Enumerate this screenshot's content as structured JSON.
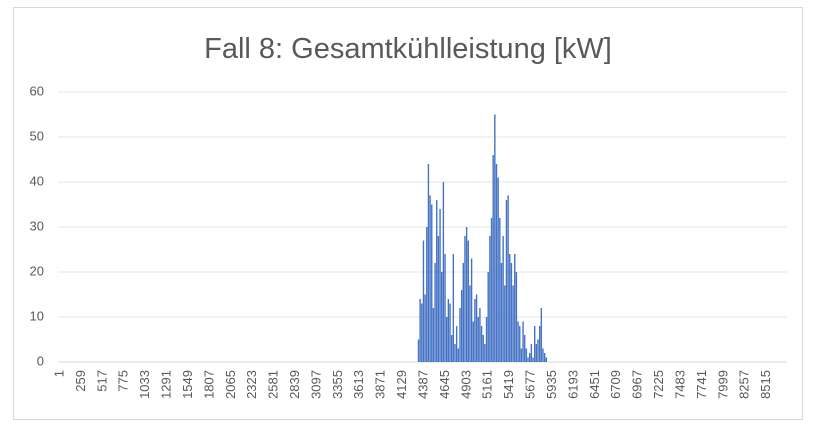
{
  "chart_data": {
    "type": "bar",
    "title": "Fall 8: Gesamtkühlleistung [kW]",
    "x": [
      4320,
      4340,
      4360,
      4380,
      4400,
      4420,
      4440,
      4460,
      4480,
      4500,
      4520,
      4540,
      4560,
      4580,
      4600,
      4620,
      4640,
      4660,
      4680,
      4700,
      4720,
      4740,
      4760,
      4780,
      4800,
      4820,
      4840,
      4860,
      4880,
      4900,
      4920,
      4940,
      4960,
      4980,
      5000,
      5020,
      5040,
      5060,
      5080,
      5100,
      5120,
      5140,
      5160,
      5180,
      5200,
      5220,
      5240,
      5260,
      5280,
      5300,
      5320,
      5340,
      5360,
      5380,
      5400,
      5420,
      5440,
      5460,
      5480,
      5500,
      5520,
      5540,
      5560,
      5580,
      5600,
      5620,
      5640,
      5660,
      5680,
      5700,
      5720,
      5740,
      5760,
      5780,
      5800,
      5820,
      5840,
      5860
    ],
    "values": [
      5,
      14,
      13,
      27,
      15,
      30,
      44,
      37,
      35,
      12,
      22,
      36,
      28,
      34,
      20,
      40,
      24,
      10,
      14,
      13,
      6,
      24,
      4,
      8,
      3,
      12,
      16,
      22,
      28,
      30,
      27,
      17,
      23,
      9,
      14,
      15,
      10,
      12,
      8,
      6,
      4,
      10,
      20,
      28,
      32,
      46,
      55,
      44,
      41,
      32,
      22,
      28,
      17,
      36,
      37,
      24,
      22,
      17,
      24,
      20,
      9,
      8,
      3,
      9,
      6,
      3,
      1,
      2,
      4,
      1,
      8,
      4,
      5,
      8,
      12,
      3,
      2,
      1
    ],
    "color": "#4472c4",
    "xlim": [
      1,
      8760
    ],
    "xticks": [
      1,
      259,
      517,
      775,
      1033,
      1291,
      1549,
      1807,
      2065,
      2323,
      2581,
      2839,
      3097,
      3355,
      3613,
      3871,
      4129,
      4387,
      4645,
      4903,
      5161,
      5419,
      5677,
      5935,
      6193,
      6451,
      6709,
      6967,
      7225,
      7483,
      7741,
      7999,
      8257,
      8515
    ],
    "ylim": [
      0,
      60
    ],
    "yticks": [
      0,
      10,
      20,
      30,
      40,
      50,
      60
    ],
    "grid": true
  }
}
